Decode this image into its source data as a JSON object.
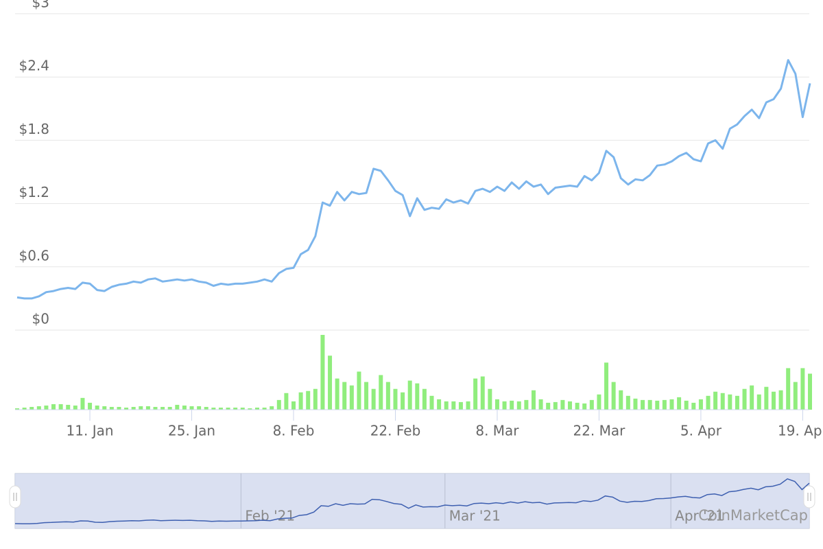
{
  "chart_data": {
    "type": "line",
    "categories": [
      null,
      null,
      null,
      null,
      null,
      null,
      null,
      null,
      null,
      null,
      "11. Jan",
      null,
      null,
      null,
      null,
      null,
      null,
      null,
      null,
      null,
      null,
      null,
      null,
      null,
      "25. Jan",
      null,
      null,
      null,
      null,
      null,
      null,
      null,
      null,
      null,
      null,
      null,
      null,
      null,
      "8. Feb",
      null,
      null,
      null,
      null,
      null,
      null,
      null,
      null,
      null,
      null,
      null,
      null,
      null,
      "22. Feb",
      null,
      null,
      null,
      null,
      null,
      null,
      null,
      null,
      null,
      null,
      null,
      null,
      null,
      "8. Mar",
      null,
      null,
      null,
      null,
      null,
      null,
      null,
      null,
      null,
      null,
      null,
      null,
      null,
      "22. Mar",
      null,
      null,
      null,
      null,
      null,
      null,
      null,
      null,
      null,
      null,
      null,
      null,
      null,
      "5. Apr",
      null,
      null,
      null,
      null,
      null,
      null,
      null,
      null,
      null,
      null,
      null,
      null,
      null,
      "19. Apr",
      null
    ],
    "series": [
      {
        "color": "#7cb5ec",
        "values": [
          0.31,
          0.3,
          0.3,
          0.32,
          0.36,
          0.37,
          0.39,
          0.4,
          0.39,
          0.45,
          0.44,
          0.38,
          0.37,
          0.41,
          0.43,
          0.44,
          0.46,
          0.45,
          0.48,
          0.49,
          0.46,
          0.47,
          0.48,
          0.47,
          0.48,
          0.46,
          0.45,
          0.42,
          0.44,
          0.43,
          0.44,
          0.44,
          0.45,
          0.46,
          0.48,
          0.46,
          0.54,
          0.58,
          0.59,
          0.72,
          0.76,
          0.89,
          1.21,
          1.18,
          1.31,
          1.23,
          1.31,
          1.29,
          1.3,
          1.53,
          1.51,
          1.42,
          1.32,
          1.28,
          1.08,
          1.25,
          1.14,
          1.16,
          1.15,
          1.24,
          1.21,
          1.23,
          1.2,
          1.32,
          1.34,
          1.31,
          1.36,
          1.32,
          1.4,
          1.34,
          1.41,
          1.36,
          1.38,
          1.29,
          1.35,
          1.36,
          1.37,
          1.36,
          1.46,
          1.42,
          1.49,
          1.7,
          1.64,
          1.44,
          1.38,
          1.43,
          1.42,
          1.47,
          1.56,
          1.57,
          1.6,
          1.65,
          1.68,
          1.62,
          1.6,
          1.77,
          1.8,
          1.72,
          1.91,
          1.95,
          2.03,
          2.09,
          2.01,
          2.16,
          2.19,
          2.29,
          2.56,
          2.43,
          2.02,
          2.34
        ]
      }
    ],
    "ylim": [
      0,
      3
    ],
    "yticks": [
      {
        "value": 0,
        "label": "$0"
      },
      {
        "value": 0.6,
        "label": "$0.6"
      },
      {
        "value": 1.2,
        "label": "$1.2"
      },
      {
        "value": 1.8,
        "label": "$1.8"
      },
      {
        "value": 2.4,
        "label": "$2.4"
      },
      {
        "value": 3,
        "label": "$3"
      }
    ],
    "grid": true,
    "volume": {
      "color": "#90ed7d",
      "values": [
        2,
        3,
        4,
        5,
        6,
        8,
        8,
        7,
        6,
        17,
        10,
        6,
        5,
        4,
        4,
        3,
        4,
        5,
        5,
        4,
        4,
        4,
        7,
        6,
        5,
        5,
        4,
        3,
        3,
        3,
        3,
        3,
        2,
        3,
        3,
        5,
        14,
        24,
        12,
        25,
        27,
        30,
        108,
        78,
        45,
        40,
        35,
        55,
        40,
        30,
        50,
        40,
        30,
        25,
        42,
        38,
        30,
        20,
        15,
        12,
        12,
        11,
        12,
        45,
        48,
        30,
        15,
        12,
        13,
        12,
        14,
        28,
        15,
        10,
        11,
        14,
        12,
        10,
        9,
        14,
        22,
        68,
        40,
        28,
        20,
        16,
        14,
        14,
        13,
        14,
        15,
        18,
        13,
        10,
        15,
        20,
        26,
        24,
        22,
        20,
        30,
        35,
        22,
        33,
        26,
        28,
        60,
        40,
        60,
        52
      ]
    },
    "navigator": {
      "color": "#3d5fb0",
      "fill": "#d4dbee",
      "labels": [
        null,
        null,
        null,
        null,
        null,
        null,
        null,
        null,
        null,
        null,
        null,
        null,
        null,
        null,
        null,
        null,
        null,
        null,
        null,
        null,
        null,
        null,
        null,
        null,
        null,
        null,
        null,
        null,
        null,
        null,
        null,
        "Feb '21",
        null,
        null,
        null,
        null,
        null,
        null,
        null,
        null,
        null,
        null,
        null,
        null,
        null,
        null,
        null,
        null,
        null,
        null,
        null,
        null,
        null,
        null,
        null,
        null,
        null,
        null,
        null,
        "Mar '21",
        null,
        null,
        null,
        null,
        null,
        null,
        null,
        null,
        null,
        null,
        null,
        null,
        null,
        null,
        null,
        null,
        null,
        null,
        null,
        null,
        null,
        null,
        null,
        null,
        null,
        null,
        null,
        null,
        null,
        null,
        "Apr '21",
        null,
        null,
        null,
        null,
        null,
        null,
        null,
        null,
        null,
        null,
        null,
        null,
        null,
        null,
        null,
        null,
        null,
        null,
        null
      ]
    },
    "watermark": "CoinMarketCap"
  }
}
